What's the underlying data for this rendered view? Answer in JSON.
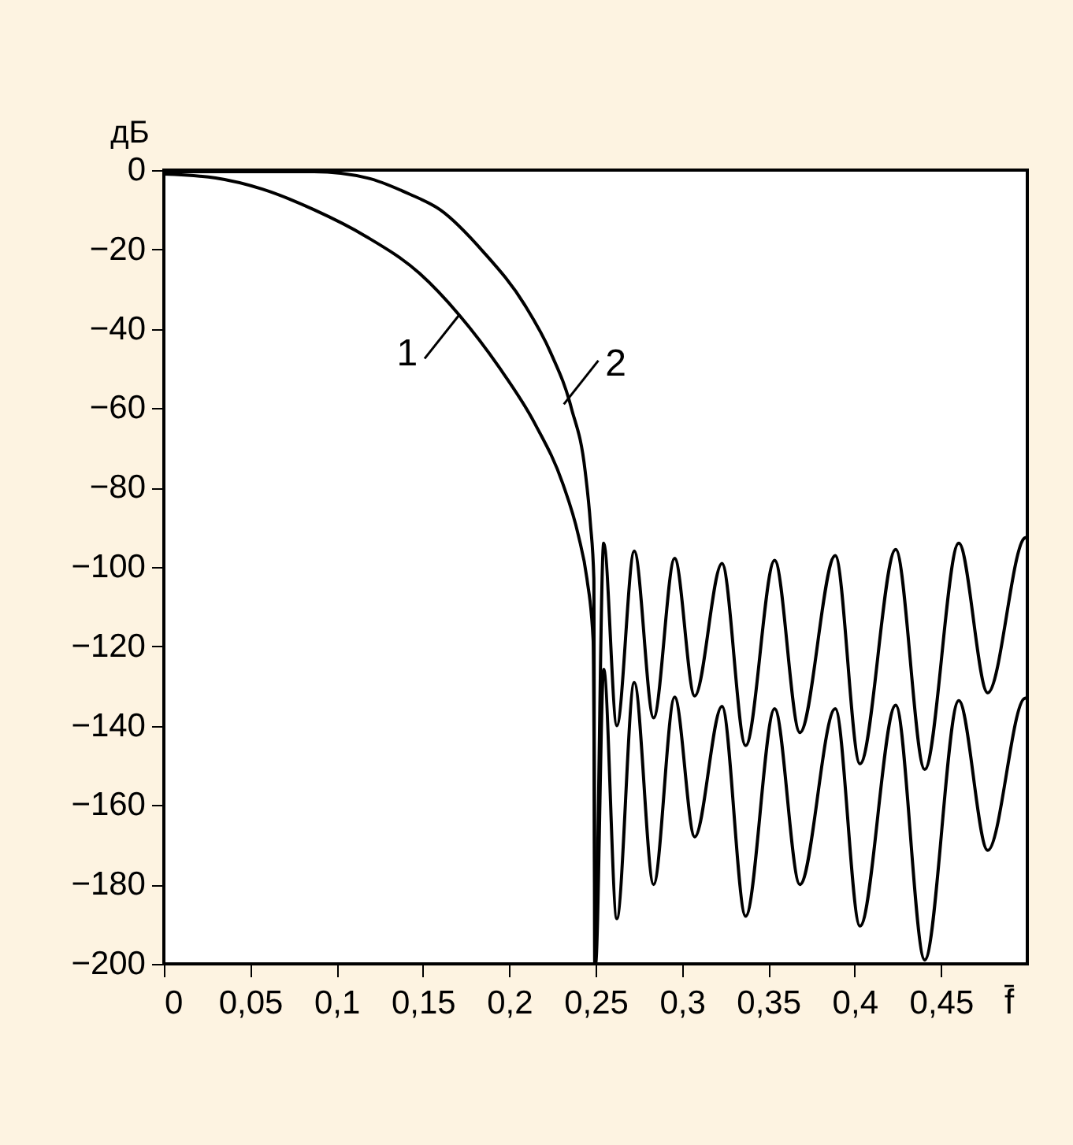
{
  "chart_data": {
    "type": "line",
    "xlabel": "f̄",
    "ylabel": "дБ",
    "xlim": [
      0,
      0.5
    ],
    "ylim": [
      -200,
      0
    ],
    "xticks": [
      0,
      {
        "value": 0.05,
        "label": "0,05"
      },
      {
        "value": 0.1,
        "label": "0,1"
      },
      {
        "value": 0.15,
        "label": "0,15"
      },
      {
        "value": 0.2,
        "label": "0,2"
      },
      {
        "value": 0.25,
        "label": "0,25"
      },
      {
        "value": 0.3,
        "label": "0,3"
      },
      {
        "value": 0.35,
        "label": "0,35"
      },
      {
        "value": 0.4,
        "label": "0,4"
      },
      {
        "value": 0.45,
        "label": "0,45"
      }
    ],
    "yticks": [
      0,
      -20,
      -40,
      -60,
      -80,
      -100,
      -120,
      -140,
      -160,
      -180,
      -200
    ],
    "grid": false,
    "marker": "none",
    "line_style": "solid",
    "series": [
      {
        "color": "#000000",
        "x": [
          0,
          0.03,
          0.057,
          0.087,
          0.117,
          0.148,
          0.171,
          0.194,
          0.215,
          0.231,
          0.24,
          0.245,
          0.2486,
          0.25,
          0.2547,
          0.2623,
          0.2724,
          0.2836,
          0.2958,
          0.3074,
          0.3232,
          0.3369,
          0.3537,
          0.3683,
          0.3888,
          0.4031,
          0.4238,
          0.4406,
          0.4603,
          0.4771,
          0.4984,
          0.5
        ],
        "values": [
          -1,
          -2,
          -4.8,
          -10,
          -16.7,
          -26,
          -36.5,
          -49.6,
          -64,
          -79,
          -92,
          -103,
          -118.5,
          -200,
          -125.8,
          -188.6,
          -129.1,
          -180,
          -132.8,
          -168,
          -135.1,
          -188,
          -135.7,
          -180,
          -135.7,
          -190.5,
          -134.8,
          -199,
          -133.7,
          -171.4,
          -133.1,
          -133
        ]
      },
      {
        "color": "#000000",
        "x": [
          0,
          0.087,
          0.118,
          0.142,
          0.16,
          0.185,
          0.209,
          0.224,
          0.236,
          0.244,
          0.247,
          0.249,
          0.2495,
          0.2547,
          0.2623,
          0.2724,
          0.2836,
          0.2958,
          0.3074,
          0.3232,
          0.3369,
          0.3537,
          0.3683,
          0.3888,
          0.4031,
          0.4238,
          0.4406,
          0.4603,
          0.4771,
          0.4984,
          0.5
        ],
        "values": [
          -0.4,
          -0.4,
          -2,
          -6,
          -10,
          -20.6,
          -34,
          -46,
          -60,
          -76,
          -89,
          -103,
          -200,
          -94,
          -140,
          -96,
          -138,
          -97.8,
          -132.5,
          -99.1,
          -145,
          -98.3,
          -141.7,
          -97.1,
          -149.6,
          -95.6,
          -151,
          -94,
          -131.7,
          -92.7,
          -92.5
        ]
      }
    ],
    "annotations": [
      {
        "text": "1",
        "x": 0.171,
        "y": -36.5
      },
      {
        "text": "2",
        "x": 0.2316,
        "y": -59
      }
    ]
  }
}
